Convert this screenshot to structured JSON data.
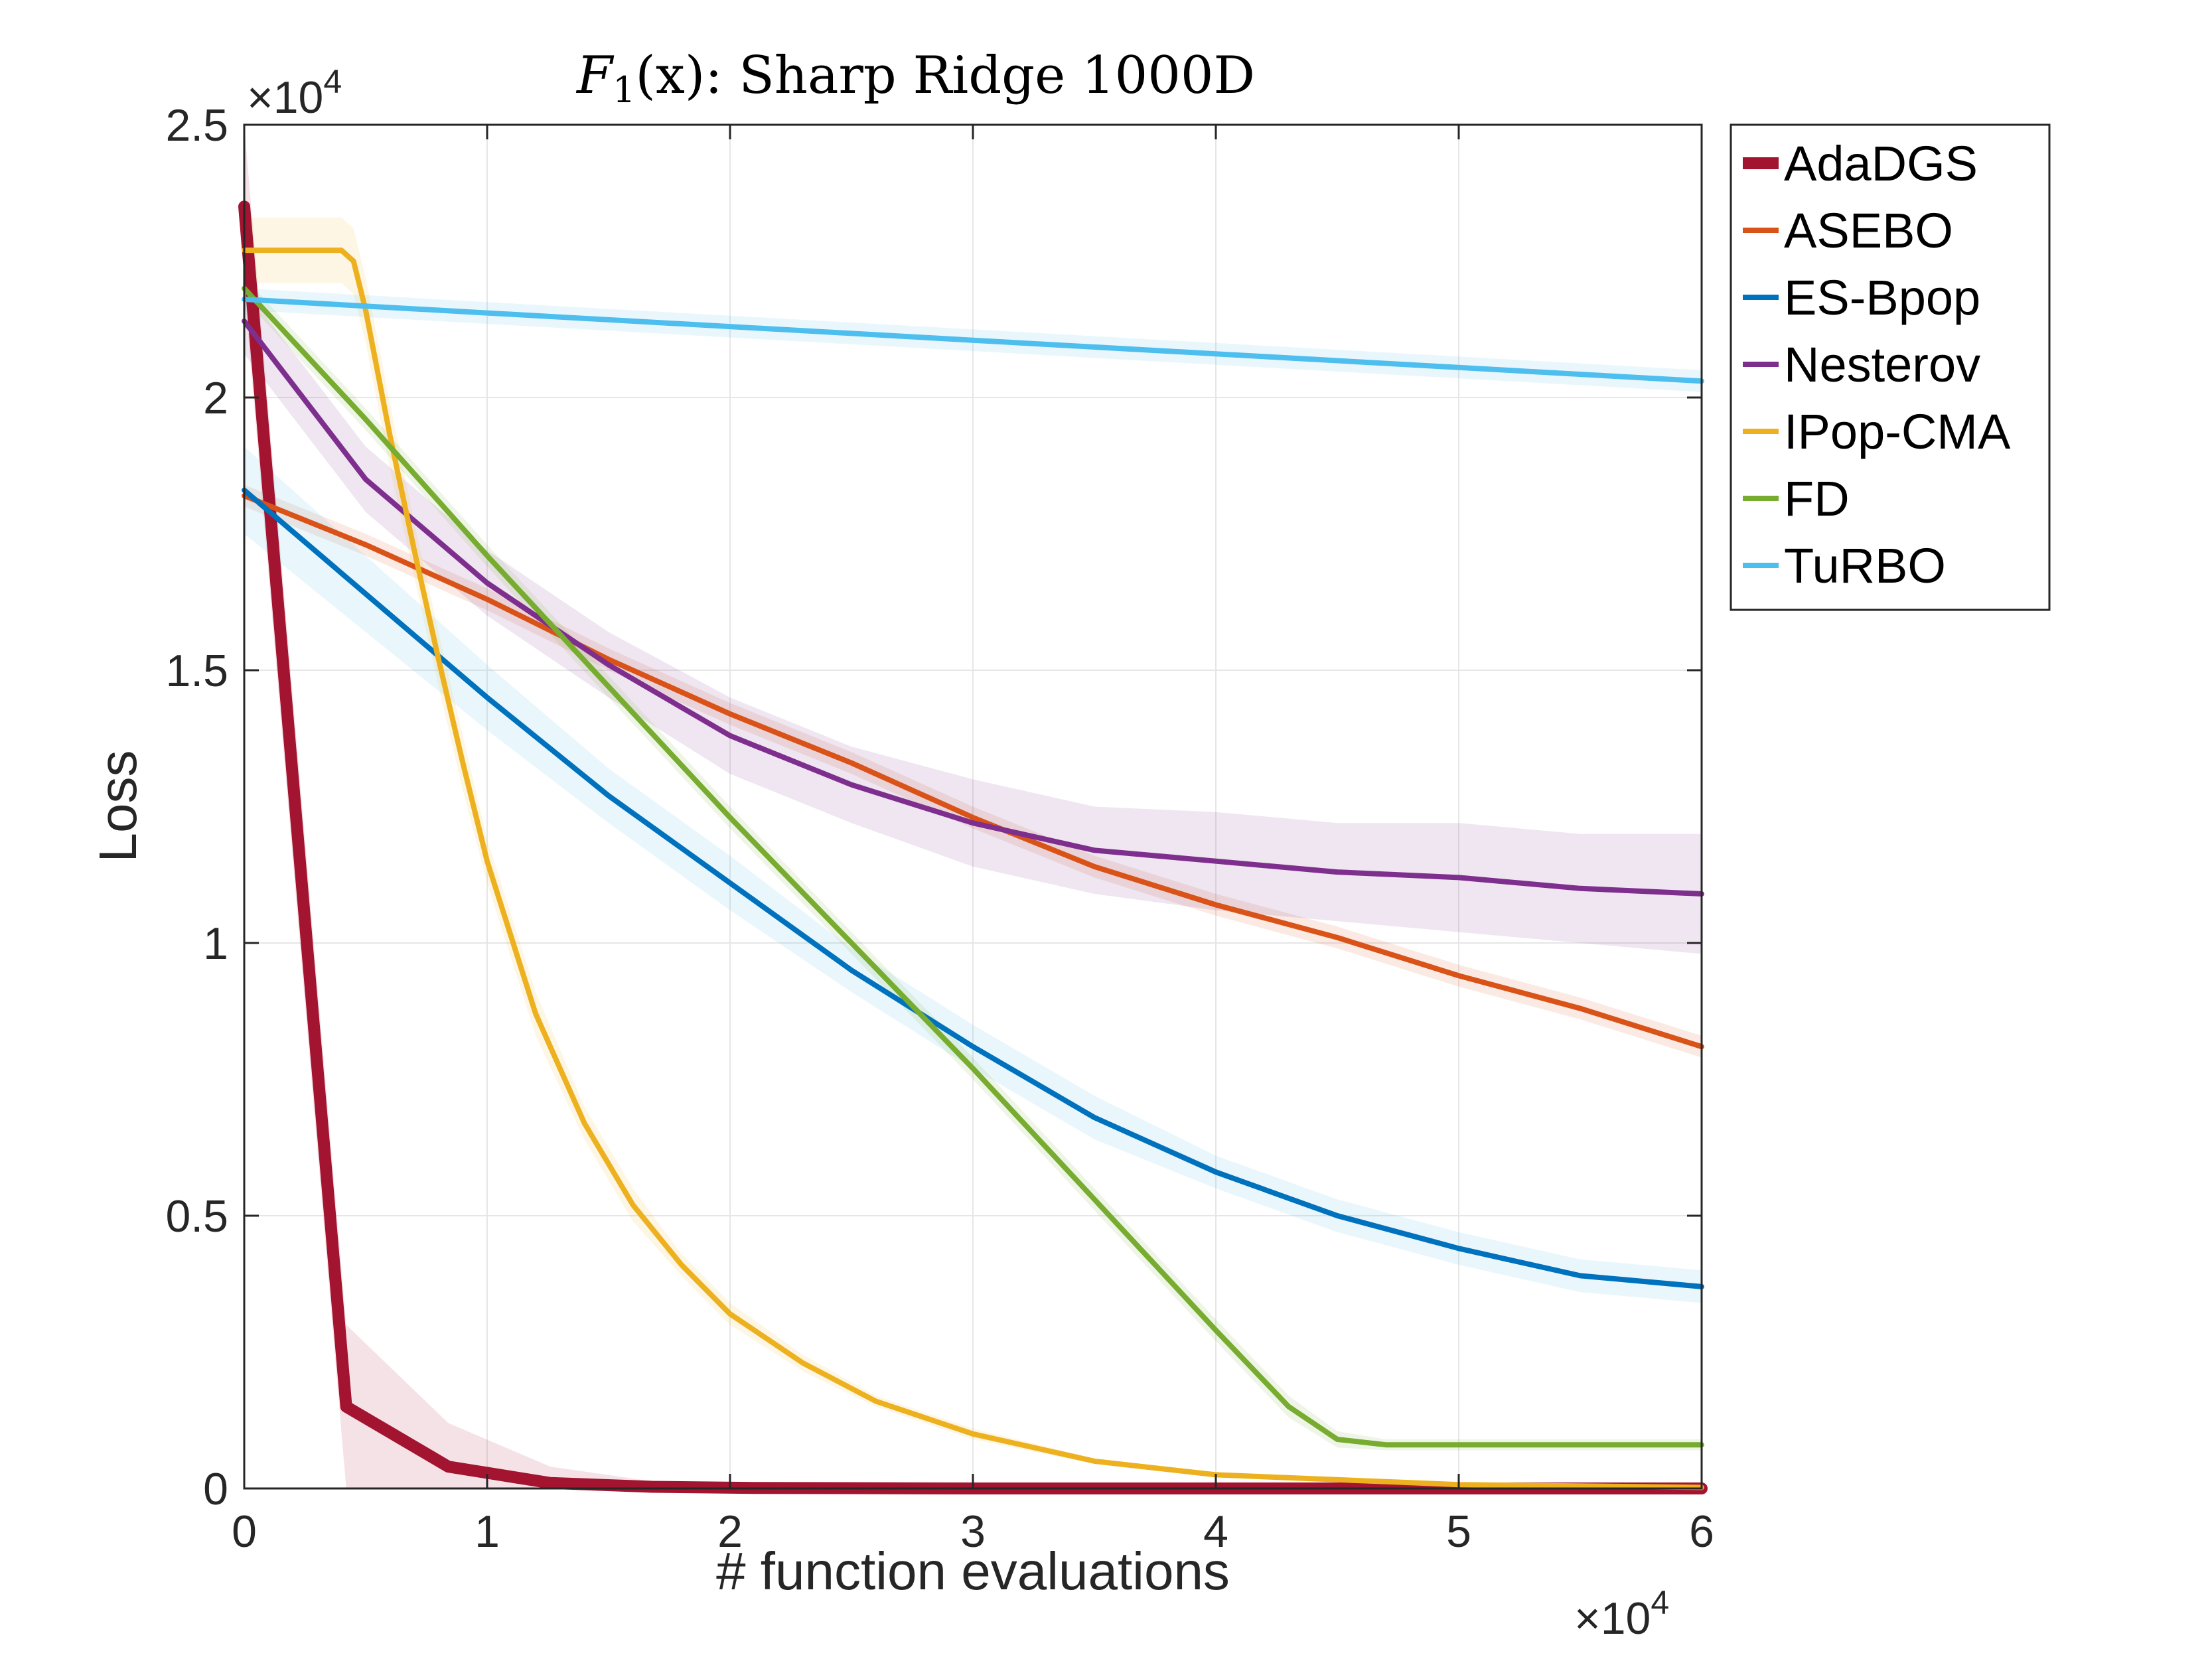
{
  "chart_data": {
    "type": "line",
    "title_parts": {
      "func": "F",
      "sub": "1",
      "rest": "(x): Sharp Ridge 1000D"
    },
    "xlabel": "# function evaluations",
    "ylabel": "Loss",
    "x_multiplier": "×10",
    "x_multiplier_exp": "4",
    "y_multiplier": "×10",
    "y_multiplier_exp": "4",
    "xlim": [
      0,
      6
    ],
    "ylim": [
      0,
      2.5
    ],
    "xticks": [
      0,
      1,
      2,
      3,
      4,
      5,
      6
    ],
    "xtick_labels": [
      "0",
      "1",
      "2",
      "3",
      "4",
      "5",
      "6"
    ],
    "yticks": [
      0,
      0.5,
      1,
      1.5,
      2,
      2.5
    ],
    "ytick_labels": [
      "0",
      "0.5",
      "1",
      "1.5",
      "2",
      "2.5"
    ],
    "grid": true,
    "legend_position": "outside-top-right",
    "series": [
      {
        "name": "AdaDGS",
        "color": "#A2142F",
        "band_color": "#A2142F",
        "bold": true,
        "x": [
          0,
          0.42,
          0.84,
          1.26,
          1.68,
          2.1,
          3,
          4,
          5,
          6
        ],
        "y": [
          2.35,
          0.15,
          0.04,
          0.01,
          0.003,
          0.001,
          0,
          0,
          0,
          0
        ],
        "band": [
          0.15,
          0.15,
          0.08,
          0.03,
          0.01,
          0.005,
          0,
          0,
          0,
          0
        ]
      },
      {
        "name": "ASEBO",
        "color": "#D95319",
        "band_color": "#D95319",
        "x": [
          0,
          0.5,
          1,
          1.5,
          2,
          2.5,
          3,
          3.5,
          4,
          4.5,
          5,
          5.5,
          6
        ],
        "y": [
          1.82,
          1.73,
          1.63,
          1.52,
          1.42,
          1.33,
          1.23,
          1.14,
          1.07,
          1.01,
          0.94,
          0.88,
          0.81
        ],
        "band": [
          0.02,
          0.02,
          0.02,
          0.02,
          0.02,
          0.02,
          0.02,
          0.02,
          0.02,
          0.02,
          0.02,
          0.02,
          0.02
        ]
      },
      {
        "name": "ES-Bpop",
        "color": "#0072BD",
        "band_color": "#4DBEEE",
        "x": [
          0,
          0.5,
          1,
          1.5,
          2,
          2.5,
          3,
          3.5,
          4,
          4.5,
          5,
          5.5,
          6
        ],
        "y": [
          1.83,
          1.64,
          1.45,
          1.27,
          1.11,
          0.95,
          0.81,
          0.68,
          0.58,
          0.5,
          0.44,
          0.39,
          0.37
        ],
        "band": [
          0.08,
          0.07,
          0.06,
          0.05,
          0.05,
          0.04,
          0.04,
          0.04,
          0.03,
          0.03,
          0.03,
          0.03,
          0.03
        ]
      },
      {
        "name": "Nesterov",
        "color": "#7E2F8E",
        "band_color": "#7E2F8E",
        "x": [
          0,
          0.5,
          1,
          1.5,
          2,
          2.5,
          3,
          3.5,
          4,
          4.5,
          5,
          5.5,
          6
        ],
        "y": [
          2.14,
          1.85,
          1.66,
          1.51,
          1.38,
          1.29,
          1.22,
          1.17,
          1.15,
          1.13,
          1.12,
          1.1,
          1.09
        ],
        "band": [
          0.06,
          0.06,
          0.06,
          0.06,
          0.07,
          0.07,
          0.08,
          0.08,
          0.09,
          0.09,
          0.1,
          0.1,
          0.11
        ]
      },
      {
        "name": "IPop-CMA",
        "color": "#EDB120",
        "band_color": "#EDB120",
        "x": [
          0,
          0.4,
          0.45,
          0.5,
          0.6,
          0.7,
          0.8,
          0.9,
          1,
          1.2,
          1.4,
          1.6,
          1.8,
          2,
          2.3,
          2.6,
          3,
          3.5,
          4,
          5,
          6
        ],
        "y": [
          2.27,
          2.27,
          2.25,
          2.16,
          1.93,
          1.72,
          1.52,
          1.33,
          1.15,
          0.87,
          0.67,
          0.52,
          0.41,
          0.32,
          0.23,
          0.16,
          0.1,
          0.05,
          0.025,
          0.007,
          0.002
        ],
        "band": [
          0.06,
          0.06,
          0.06,
          0.06,
          0.06,
          0.05,
          0.05,
          0.05,
          0.04,
          0.04,
          0.03,
          0.03,
          0.02,
          0.02,
          0.015,
          0.01,
          0.01,
          0.005,
          0.005,
          0.002,
          0.001
        ]
      },
      {
        "name": "FD",
        "color": "#77AC30",
        "band_color": "#77AC30",
        "x": [
          0,
          0.5,
          1,
          1.5,
          2,
          2.5,
          3,
          3.5,
          4,
          4.3,
          4.5,
          4.7,
          5,
          5.5,
          6
        ],
        "y": [
          2.2,
          1.96,
          1.71,
          1.47,
          1.23,
          1.0,
          0.77,
          0.53,
          0.29,
          0.15,
          0.09,
          0.08,
          0.08,
          0.08,
          0.08
        ],
        "band": [
          0.02,
          0.02,
          0.02,
          0.02,
          0.02,
          0.02,
          0.02,
          0.02,
          0.02,
          0.02,
          0.015,
          0.01,
          0.01,
          0.01,
          0.01
        ]
      },
      {
        "name": "TuRBO",
        "color": "#4DBEEE",
        "band_color": "#4DBEEE",
        "x": [
          0,
          1,
          2,
          3,
          4,
          5,
          6
        ],
        "y": [
          2.18,
          2.155,
          2.13,
          2.105,
          2.08,
          2.055,
          2.03
        ],
        "band": [
          0.02,
          0.02,
          0.02,
          0.02,
          0.02,
          0.02,
          0.02
        ]
      }
    ]
  }
}
